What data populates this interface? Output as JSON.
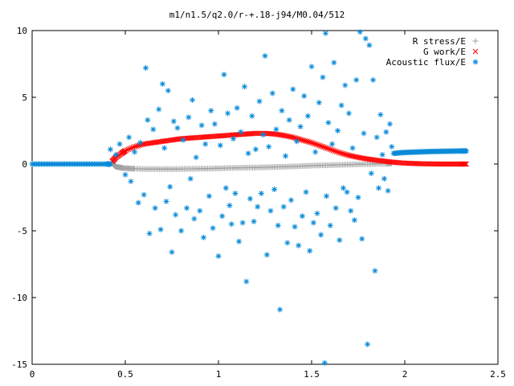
{
  "chart_data": {
    "type": "scatter",
    "title": "m1/n1.5/q2.0/r-+.18-j94/M0.04/512",
    "xlabel": "",
    "ylabel": "",
    "xlim": [
      0,
      2.5
    ],
    "ylim": [
      -15,
      10
    ],
    "xticks": [
      "0",
      "0.5",
      "1",
      "1.5",
      "2",
      "2.5"
    ],
    "yticks": [
      "10",
      "5",
      "0",
      "-5",
      "-10",
      "-15"
    ],
    "xtick_values": [
      0,
      0.5,
      1,
      1.5,
      2,
      2.5
    ],
    "ytick_values": [
      10,
      5,
      0,
      -5,
      -10,
      -15
    ],
    "grid": false,
    "legend_position": "top-right",
    "series": [
      {
        "name": "R stress/E",
        "marker": "plus",
        "color": "#a0a0a0",
        "points": [
          [
            0.43,
            0.1
          ],
          [
            0.44,
            -0.1
          ],
          [
            0.45,
            -0.2
          ],
          [
            0.47,
            -0.25
          ],
          [
            0.49,
            -0.3
          ],
          [
            0.52,
            -0.33
          ],
          [
            0.55,
            -0.35
          ],
          [
            0.6,
            -0.37
          ],
          [
            0.65,
            -0.38
          ],
          [
            0.7,
            -0.38
          ],
          [
            0.75,
            -0.38
          ],
          [
            0.8,
            -0.37
          ],
          [
            0.85,
            -0.36
          ],
          [
            0.9,
            -0.35
          ],
          [
            0.95,
            -0.34
          ],
          [
            1.0,
            -0.32
          ],
          [
            1.05,
            -0.3
          ],
          [
            1.1,
            -0.28
          ],
          [
            1.15,
            -0.27
          ],
          [
            1.2,
            -0.26
          ],
          [
            1.25,
            -0.24
          ],
          [
            1.3,
            -0.22
          ],
          [
            1.35,
            -0.2
          ],
          [
            1.4,
            -0.18
          ],
          [
            1.45,
            -0.15
          ],
          [
            1.5,
            -0.12
          ],
          [
            1.55,
            -0.1
          ],
          [
            1.6,
            -0.08
          ],
          [
            1.65,
            -0.06
          ],
          [
            1.7,
            -0.04
          ],
          [
            1.75,
            -0.02
          ],
          [
            1.8,
            0.0
          ],
          [
            1.85,
            0.02
          ],
          [
            1.9,
            0.03
          ],
          [
            1.93,
            0.05
          ]
        ]
      },
      {
        "name": "G work/E",
        "marker": "cross",
        "color": "#ff0000",
        "points": [
          [
            0.43,
            0.2
          ],
          [
            0.45,
            0.5
          ],
          [
            0.48,
            0.8
          ],
          [
            0.5,
            1.0
          ],
          [
            0.55,
            1.3
          ],
          [
            0.6,
            1.5
          ],
          [
            0.65,
            1.6
          ],
          [
            0.7,
            1.7
          ],
          [
            0.75,
            1.8
          ],
          [
            0.8,
            1.9
          ],
          [
            0.85,
            1.95
          ],
          [
            0.9,
            2.0
          ],
          [
            0.95,
            2.05
          ],
          [
            1.0,
            2.1
          ],
          [
            1.05,
            2.15
          ],
          [
            1.1,
            2.2
          ],
          [
            1.15,
            2.25
          ],
          [
            1.2,
            2.3
          ],
          [
            1.25,
            2.3
          ],
          [
            1.3,
            2.25
          ],
          [
            1.35,
            2.15
          ],
          [
            1.4,
            2.0
          ],
          [
            1.45,
            1.8
          ],
          [
            1.5,
            1.6
          ],
          [
            1.55,
            1.35
          ],
          [
            1.6,
            1.1
          ],
          [
            1.65,
            0.85
          ],
          [
            1.7,
            0.65
          ],
          [
            1.75,
            0.5
          ],
          [
            1.8,
            0.38
          ],
          [
            1.85,
            0.28
          ],
          [
            1.9,
            0.2
          ],
          [
            1.95,
            0.12
          ],
          [
            2.0,
            0.07
          ],
          [
            2.05,
            0.04
          ],
          [
            2.1,
            0.02
          ],
          [
            2.15,
            0.01
          ],
          [
            2.2,
            0.0
          ],
          [
            2.25,
            0.0
          ],
          [
            2.3,
            0.0
          ],
          [
            2.33,
            0.0
          ]
        ]
      },
      {
        "name": "Acoustic flux/E",
        "marker": "star",
        "color": "#0a8ad8",
        "points": [
          [
            0.0,
            0.0
          ],
          [
            0.05,
            0.0
          ],
          [
            0.1,
            0.0
          ],
          [
            0.15,
            0.0
          ],
          [
            0.2,
            0.0
          ],
          [
            0.25,
            0.0
          ],
          [
            0.3,
            0.0
          ],
          [
            0.35,
            0.0
          ],
          [
            0.4,
            0.0
          ],
          [
            0.42,
            0.0
          ],
          [
            1.94,
            0.8
          ],
          [
            1.98,
            0.85
          ],
          [
            2.02,
            0.88
          ],
          [
            2.06,
            0.9
          ],
          [
            2.1,
            0.92
          ],
          [
            2.14,
            0.94
          ],
          [
            2.18,
            0.95
          ],
          [
            2.22,
            0.96
          ],
          [
            2.26,
            0.97
          ],
          [
            2.3,
            0.98
          ],
          [
            2.33,
            0.98
          ],
          [
            0.42,
            1.1
          ],
          [
            0.45,
            0.7
          ],
          [
            0.47,
            1.5
          ],
          [
            0.5,
            -0.8
          ],
          [
            0.52,
            2.0
          ],
          [
            0.53,
            -1.3
          ],
          [
            0.55,
            0.9
          ],
          [
            0.57,
            -2.9
          ],
          [
            0.58,
            1.6
          ],
          [
            0.6,
            -2.3
          ],
          [
            0.61,
            7.2
          ],
          [
            0.62,
            3.3
          ],
          [
            0.63,
            -5.2
          ],
          [
            0.65,
            2.6
          ],
          [
            0.66,
            -3.3
          ],
          [
            0.68,
            4.1
          ],
          [
            0.69,
            -4.9
          ],
          [
            0.7,
            6.0
          ],
          [
            0.71,
            1.2
          ],
          [
            0.72,
            -2.8
          ],
          [
            0.73,
            5.5
          ],
          [
            0.74,
            -1.7
          ],
          [
            0.75,
            -6.6
          ],
          [
            0.76,
            3.2
          ],
          [
            0.77,
            -3.8
          ],
          [
            0.78,
            2.7
          ],
          [
            0.8,
            -5.0
          ],
          [
            0.81,
            1.8
          ],
          [
            0.83,
            -3.3
          ],
          [
            0.84,
            3.5
          ],
          [
            0.85,
            -1.1
          ],
          [
            0.86,
            4.8
          ],
          [
            0.87,
            -4.1
          ],
          [
            0.88,
            0.5
          ],
          [
            0.9,
            -3.5
          ],
          [
            0.91,
            2.9
          ],
          [
            0.92,
            -5.5
          ],
          [
            0.93,
            1.5
          ],
          [
            0.95,
            -2.4
          ],
          [
            0.96,
            4.0
          ],
          [
            0.97,
            -4.8
          ],
          [
            0.98,
            3.0
          ],
          [
            1.0,
            -6.9
          ],
          [
            1.01,
            1.4
          ],
          [
            1.02,
            -3.9
          ],
          [
            1.03,
            6.7
          ],
          [
            1.04,
            -1.8
          ],
          [
            1.05,
            3.8
          ],
          [
            1.06,
            -3.1
          ],
          [
            1.07,
            -4.5
          ],
          [
            1.08,
            1.9
          ],
          [
            1.09,
            -2.2
          ],
          [
            1.1,
            4.2
          ],
          [
            1.11,
            -5.8
          ],
          [
            1.12,
            2.4
          ],
          [
            1.13,
            -4.4
          ],
          [
            1.14,
            5.8
          ],
          [
            1.15,
            -8.8
          ],
          [
            1.16,
            0.8
          ],
          [
            1.17,
            -2.6
          ],
          [
            1.18,
            3.6
          ],
          [
            1.19,
            -4.3
          ],
          [
            1.2,
            1.1
          ],
          [
            1.21,
            -3.2
          ],
          [
            1.22,
            4.7
          ],
          [
            1.23,
            -2.2
          ],
          [
            1.24,
            2.2
          ],
          [
            1.25,
            8.1
          ],
          [
            1.26,
            -6.8
          ],
          [
            1.27,
            1.3
          ],
          [
            1.28,
            -3.5
          ],
          [
            1.29,
            5.3
          ],
          [
            1.3,
            -1.9
          ],
          [
            1.31,
            2.6
          ],
          [
            1.32,
            -4.6
          ],
          [
            1.33,
            -10.9
          ],
          [
            1.34,
            4.0
          ],
          [
            1.35,
            -3.2
          ],
          [
            1.36,
            0.6
          ],
          [
            1.37,
            -5.9
          ],
          [
            1.38,
            3.3
          ],
          [
            1.39,
            -2.7
          ],
          [
            1.4,
            5.6
          ],
          [
            1.41,
            -4.7
          ],
          [
            1.42,
            1.7
          ],
          [
            1.43,
            -6.1
          ],
          [
            1.44,
            2.8
          ],
          [
            1.45,
            -3.9
          ],
          [
            1.46,
            5.1
          ],
          [
            1.47,
            -2.1
          ],
          [
            1.48,
            3.6
          ],
          [
            1.49,
            -6.5
          ],
          [
            1.5,
            7.3
          ],
          [
            1.51,
            -4.4
          ],
          [
            1.52,
            0.9
          ],
          [
            1.53,
            -3.7
          ],
          [
            1.54,
            4.6
          ],
          [
            1.55,
            -5.3
          ],
          [
            1.56,
            6.5
          ],
          [
            1.57,
            -14.9
          ],
          [
            1.575,
            9.8
          ],
          [
            1.58,
            -2.4
          ],
          [
            1.59,
            3.1
          ],
          [
            1.6,
            -4.6
          ],
          [
            1.61,
            1.5
          ],
          [
            1.62,
            7.6
          ],
          [
            1.63,
            -3.3
          ],
          [
            1.64,
            2.5
          ],
          [
            1.65,
            -5.7
          ],
          [
            1.66,
            4.4
          ],
          [
            1.67,
            -1.8
          ],
          [
            1.68,
            5.9
          ],
          [
            1.69,
            -2.1
          ],
          [
            1.7,
            3.8
          ],
          [
            1.71,
            -3.5
          ],
          [
            1.72,
            1.2
          ],
          [
            1.73,
            -4.2
          ],
          [
            1.74,
            6.3
          ],
          [
            1.75,
            -2.5
          ],
          [
            1.76,
            9.9
          ],
          [
            1.77,
            -5.6
          ],
          [
            1.78,
            2.3
          ],
          [
            1.79,
            9.4
          ],
          [
            1.8,
            -13.5
          ],
          [
            1.81,
            8.9
          ],
          [
            1.82,
            -0.7
          ],
          [
            1.83,
            6.3
          ],
          [
            1.84,
            -8.0
          ],
          [
            1.85,
            2.0
          ],
          [
            1.86,
            -1.8
          ],
          [
            1.87,
            3.7
          ],
          [
            1.88,
            0.7
          ],
          [
            1.89,
            -1.1
          ],
          [
            1.9,
            2.4
          ],
          [
            1.91,
            -2.0
          ],
          [
            1.92,
            3.0
          ],
          [
            1.93,
            1.3
          ]
        ]
      }
    ]
  }
}
